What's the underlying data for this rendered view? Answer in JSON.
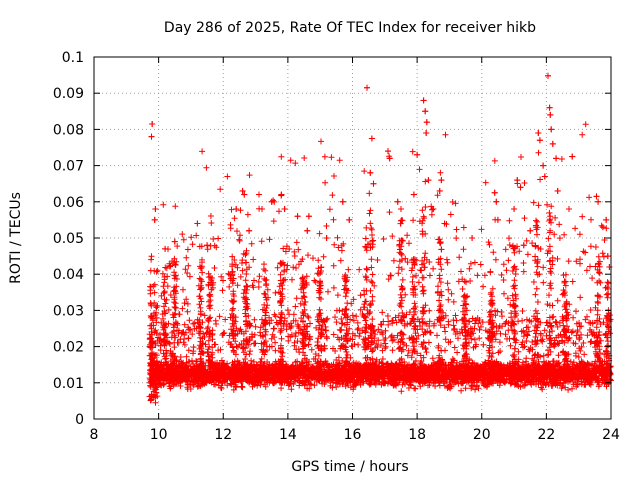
{
  "chart_data": {
    "type": "scatter",
    "title": "Day 286 of 2025, Rate Of TEC Index for receiver hikb",
    "xlabel": "GPS time / hours",
    "ylabel": "ROTI / TECUs",
    "xlim": [
      8,
      24
    ],
    "ylim": [
      0,
      0.1
    ],
    "xticks": [
      8,
      10,
      12,
      14,
      16,
      18,
      20,
      22,
      24
    ],
    "xtick_labels": [
      "8",
      "10",
      "12",
      "14",
      "16",
      "18",
      "20",
      "22",
      "24"
    ],
    "yticks": [
      0,
      0.01,
      0.02,
      0.03,
      0.04,
      0.05,
      0.06,
      0.07,
      0.08,
      0.09,
      0.1
    ],
    "ytick_labels": [
      "0",
      "0.01",
      "0.02",
      "0.03",
      "0.04",
      "0.05",
      "0.06",
      "0.07",
      "0.08",
      "0.09",
      "0.1"
    ],
    "grid": true,
    "marker": "+",
    "marker_color": "#ff0000",
    "data_start_hour": 9.72,
    "data_end_hour": 24.0,
    "series": [
      {
        "name": "ROTI",
        "points": [
          [
            9.8,
            0.0815
          ],
          [
            9.78,
            0.078
          ],
          [
            9.9,
            0.058
          ],
          [
            9.88,
            0.055
          ],
          [
            10.2,
            0.047
          ],
          [
            10.5,
            0.049
          ],
          [
            11.2,
            0.054
          ],
          [
            11.5,
            0.048
          ],
          [
            12.4,
            0.058
          ],
          [
            12.6,
            0.063
          ],
          [
            12.65,
            0.062
          ],
          [
            12.8,
            0.052
          ],
          [
            13.2,
            0.058
          ],
          [
            13.5,
            0.06
          ],
          [
            13.8,
            0.062
          ],
          [
            13.9,
            0.058
          ],
          [
            14.3,
            0.056
          ],
          [
            14.6,
            0.052
          ],
          [
            14.65,
            0.056
          ],
          [
            15.2,
            0.05
          ],
          [
            15.7,
            0.06
          ],
          [
            15.9,
            0.055
          ],
          [
            16.45,
            0.0915
          ],
          [
            16.6,
            0.0775
          ],
          [
            16.55,
            0.068
          ],
          [
            16.65,
            0.065
          ],
          [
            17.1,
            0.074
          ],
          [
            17.15,
            0.072
          ],
          [
            17.4,
            0.06
          ],
          [
            17.5,
            0.058
          ],
          [
            17.9,
            0.062
          ],
          [
            18.0,
            0.073
          ],
          [
            18.2,
            0.088
          ],
          [
            18.25,
            0.085
          ],
          [
            18.3,
            0.082
          ],
          [
            18.28,
            0.079
          ],
          [
            18.35,
            0.066
          ],
          [
            18.5,
            0.058
          ],
          [
            18.7,
            0.063
          ],
          [
            18.75,
            0.066
          ],
          [
            18.85,
            0.054
          ],
          [
            19.7,
            0.05
          ],
          [
            20.4,
            0.0625
          ],
          [
            20.45,
            0.06
          ],
          [
            20.5,
            0.055
          ],
          [
            21.0,
            0.058
          ],
          [
            21.1,
            0.066
          ],
          [
            21.2,
            0.064
          ],
          [
            21.3,
            0.048
          ],
          [
            21.5,
            0.052
          ],
          [
            21.75,
            0.079
          ],
          [
            21.8,
            0.077
          ],
          [
            21.9,
            0.07
          ],
          [
            21.95,
            0.067
          ],
          [
            22.05,
            0.0948
          ],
          [
            22.1,
            0.086
          ],
          [
            22.12,
            0.084
          ],
          [
            22.15,
            0.08
          ],
          [
            22.2,
            0.076
          ],
          [
            22.3,
            0.072
          ],
          [
            22.35,
            0.063
          ],
          [
            22.7,
            0.058
          ],
          [
            22.8,
            0.0725
          ],
          [
            23.2,
            0.046
          ],
          [
            23.55,
            0.0615
          ],
          [
            23.6,
            0.06
          ],
          [
            23.75,
            0.053
          ],
          [
            23.85,
            0.055
          ],
          [
            23.9,
            0.045
          ],
          [
            23.95,
            0.042
          ]
        ]
      }
    ]
  }
}
